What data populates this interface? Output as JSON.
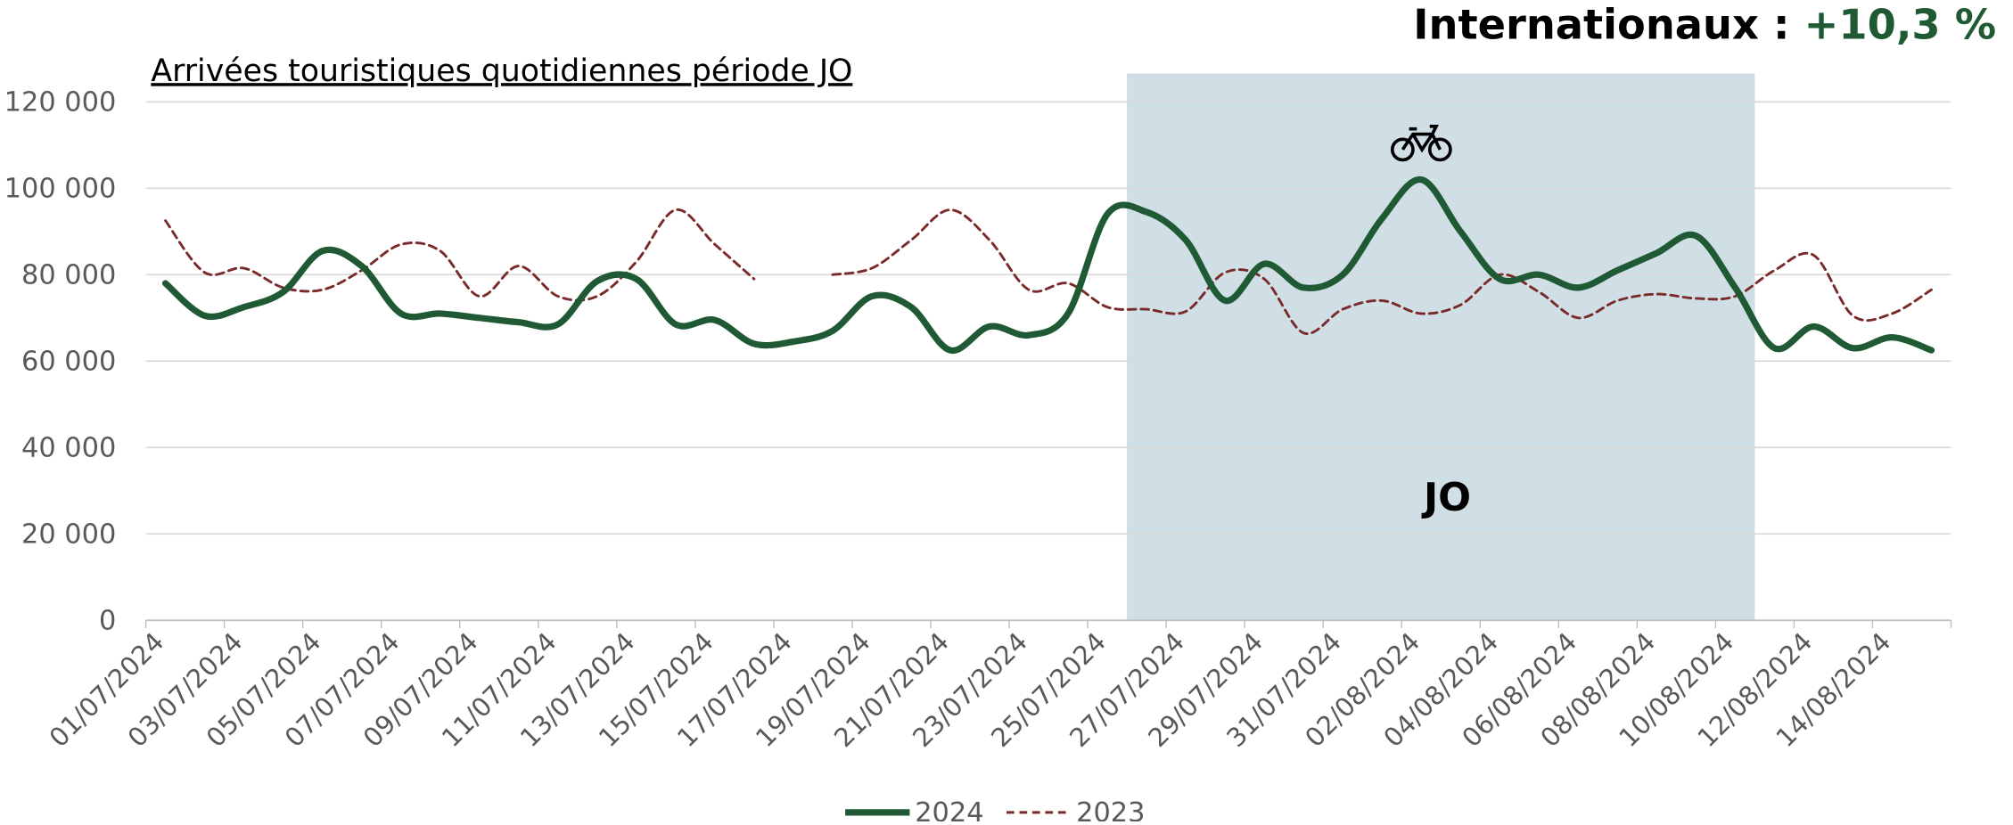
{
  "chart_data": {
    "type": "line",
    "headline": {
      "label": "Internationaux :",
      "value": "+10,3 %"
    },
    "title": "Arrivées touristiques quotidiennes période JO",
    "annotation": "JO",
    "span": [
      25,
      40
    ],
    "categories": [
      "01/07/2024",
      null,
      "03/07/2024",
      null,
      "05/07/2024",
      null,
      "07/07/2024",
      null,
      "09/07/2024",
      null,
      "11/07/2024",
      null,
      "13/07/2024",
      null,
      "15/07/2024",
      null,
      "17/07/2024",
      null,
      "19/07/2024",
      null,
      "21/07/2024",
      null,
      "23/07/2024",
      null,
      "25/07/2024",
      null,
      "27/07/2024",
      null,
      "29/07/2024",
      null,
      "31/07/2024",
      null,
      "02/08/2024",
      null,
      "04/08/2024",
      null,
      "06/08/2024",
      null,
      "08/08/2024",
      null,
      "10/08/2024",
      null,
      "12/08/2024",
      null,
      "14/08/2024",
      null
    ],
    "series": [
      {
        "name": "2024",
        "color": "#1f5a35",
        "values": [
          78000,
          70500,
          72500,
          76000,
          85500,
          82000,
          71000,
          71000,
          70000,
          69000,
          68500,
          78500,
          79000,
          68500,
          69500,
          64000,
          64500,
          67000,
          75000,
          72500,
          62500,
          68000,
          66000,
          71000,
          94000,
          94500,
          88000,
          74000,
          82500,
          77000,
          80000,
          93000,
          102000,
          90000,
          79000,
          80000,
          77000,
          81000,
          85000,
          89000,
          77000,
          63000,
          68000,
          63000,
          65500,
          62500
        ]
      },
      {
        "name": "2023",
        "color": "#7a2a2a",
        "dashed": true,
        "values": [
          92500,
          80500,
          81500,
          77000,
          76500,
          81000,
          87000,
          85500,
          75000,
          82000,
          75000,
          75000,
          83000,
          95000,
          87000,
          79000,
          null,
          80000,
          81500,
          88000,
          95000,
          88000,
          76500,
          78000,
          72500,
          72000,
          71500,
          80500,
          79000,
          66500,
          72000,
          74000,
          71000,
          73000,
          80000,
          76000,
          70000,
          74000,
          75500,
          74500,
          75000,
          81000,
          84500,
          70500,
          71000,
          76500
        ]
      }
    ],
    "ylim": [
      0,
      120000
    ],
    "yticks": [
      {
        "value": 0,
        "label": "0"
      },
      {
        "value": 20000,
        "label": "20 000"
      },
      {
        "value": 40000,
        "label": "40 000"
      },
      {
        "value": 60000,
        "label": "60 000"
      },
      {
        "value": 80000,
        "label": "80 000"
      },
      {
        "value": 100000,
        "label": "100 000"
      },
      {
        "value": 120000,
        "label": "120 000"
      }
    ],
    "grid": true,
    "legend": "bottom"
  }
}
